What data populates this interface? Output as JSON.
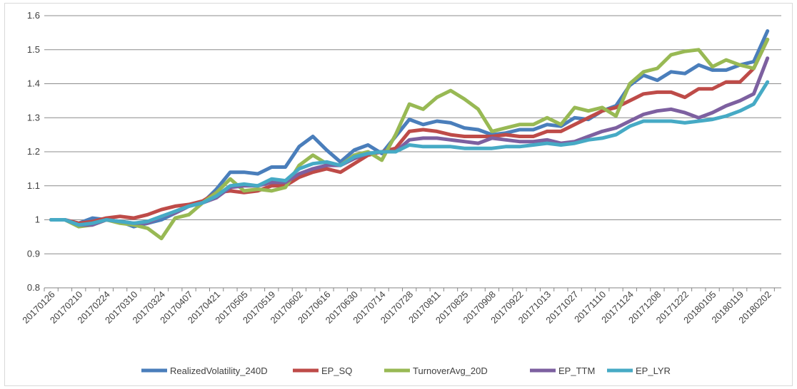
{
  "chart_data": {
    "type": "line",
    "title": "",
    "xlabel": "",
    "ylabel": "",
    "ylim": [
      0.8,
      1.6
    ],
    "ytick_step": 0.1,
    "yticks": [
      "0.8",
      "0.9",
      "1",
      "1.1",
      "1.2",
      "1.3",
      "1.4",
      "1.5",
      "1.6"
    ],
    "grid": "horizontal",
    "legend_position": "bottom",
    "xtick_labels": [
      "20170126",
      "20170210",
      "20170224",
      "20170310",
      "20170324",
      "20170407",
      "20170421",
      "20170505",
      "20170519",
      "20170602",
      "20170616",
      "20170630",
      "20170714",
      "20170728",
      "20170811",
      "20170825",
      "20170908",
      "20170922",
      "20171013",
      "20171027",
      "20171110",
      "20171124",
      "20171208",
      "20171222",
      "20180105",
      "20180119",
      "20180202"
    ],
    "n_points": 53,
    "series": [
      {
        "name": "RealizedVolatility_240D",
        "color": "#4a7ebb",
        "values": [
          1.0,
          1.0,
          0.99,
          1.005,
          1.0,
          0.995,
          0.98,
          0.99,
          1.0,
          1.02,
          1.04,
          1.05,
          1.09,
          1.14,
          1.14,
          1.135,
          1.155,
          1.155,
          1.215,
          1.245,
          1.205,
          1.17,
          1.205,
          1.22,
          1.195,
          1.245,
          1.295,
          1.28,
          1.29,
          1.285,
          1.27,
          1.265,
          1.25,
          1.255,
          1.265,
          1.265,
          1.28,
          1.275,
          1.3,
          1.295,
          1.32,
          1.335,
          1.395,
          1.425,
          1.41,
          1.435,
          1.43,
          1.455,
          1.44,
          1.44,
          1.455,
          1.465,
          1.555
        ]
      },
      {
        "name": "EP_SQ",
        "color": "#be4b48",
        "values": [
          1.0,
          1.0,
          0.99,
          0.995,
          1.005,
          1.01,
          1.005,
          1.015,
          1.03,
          1.04,
          1.045,
          1.055,
          1.08,
          1.085,
          1.08,
          1.085,
          1.1,
          1.1,
          1.125,
          1.14,
          1.15,
          1.14,
          1.165,
          1.19,
          1.2,
          1.21,
          1.26,
          1.265,
          1.26,
          1.25,
          1.245,
          1.245,
          1.245,
          1.25,
          1.245,
          1.245,
          1.26,
          1.26,
          1.28,
          1.3,
          1.32,
          1.33,
          1.35,
          1.37,
          1.375,
          1.375,
          1.36,
          1.385,
          1.385,
          1.405,
          1.405,
          1.445,
          1.53
        ]
      },
      {
        "name": "TurnoverAvg_20D",
        "color": "#98b954",
        "values": [
          1.0,
          1.0,
          0.98,
          0.985,
          1.0,
          0.99,
          0.985,
          0.975,
          0.945,
          1.005,
          1.015,
          1.05,
          1.08,
          1.12,
          1.085,
          1.09,
          1.085,
          1.095,
          1.16,
          1.19,
          1.165,
          1.16,
          1.19,
          1.2,
          1.175,
          1.25,
          1.34,
          1.325,
          1.36,
          1.38,
          1.355,
          1.325,
          1.26,
          1.27,
          1.28,
          1.28,
          1.3,
          1.28,
          1.33,
          1.32,
          1.33,
          1.305,
          1.4,
          1.435,
          1.445,
          1.485,
          1.495,
          1.5,
          1.45,
          1.47,
          1.455,
          1.445,
          1.53
        ]
      },
      {
        "name": "EP_TTM",
        "color": "#7d60a0",
        "values": [
          1.0,
          1.0,
          0.985,
          0.985,
          1.0,
          0.995,
          0.99,
          0.99,
          1.01,
          1.02,
          1.04,
          1.05,
          1.065,
          1.095,
          1.1,
          1.1,
          1.11,
          1.11,
          1.135,
          1.15,
          1.16,
          1.16,
          1.18,
          1.195,
          1.2,
          1.2,
          1.235,
          1.24,
          1.24,
          1.235,
          1.23,
          1.225,
          1.24,
          1.235,
          1.23,
          1.23,
          1.235,
          1.225,
          1.23,
          1.245,
          1.26,
          1.27,
          1.29,
          1.31,
          1.32,
          1.325,
          1.315,
          1.3,
          1.315,
          1.335,
          1.35,
          1.37,
          1.475
        ]
      },
      {
        "name": "EP_LYR",
        "color": "#46aac5",
        "values": [
          1.0,
          1.0,
          0.985,
          0.99,
          1.0,
          0.995,
          0.99,
          0.995,
          1.01,
          1.025,
          1.04,
          1.05,
          1.07,
          1.1,
          1.105,
          1.1,
          1.12,
          1.115,
          1.15,
          1.165,
          1.17,
          1.16,
          1.185,
          1.195,
          1.2,
          1.2,
          1.22,
          1.215,
          1.215,
          1.215,
          1.21,
          1.21,
          1.21,
          1.215,
          1.215,
          1.22,
          1.225,
          1.22,
          1.225,
          1.235,
          1.24,
          1.25,
          1.275,
          1.29,
          1.29,
          1.29,
          1.285,
          1.29,
          1.295,
          1.305,
          1.32,
          1.34,
          1.405
        ]
      }
    ]
  }
}
